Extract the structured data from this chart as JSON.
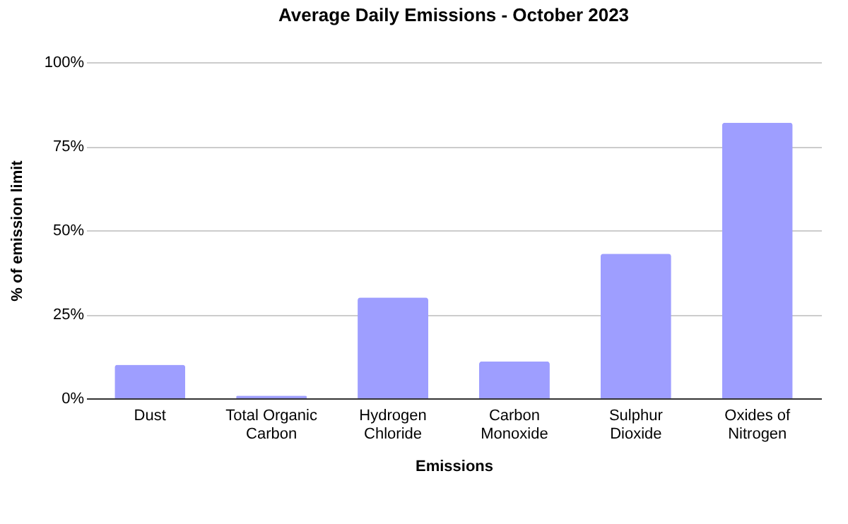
{
  "chart_data": {
    "type": "bar",
    "title": "Average Daily Emissions - October 2023",
    "xlabel": "Emissions",
    "ylabel": "% of emission limit",
    "categories": [
      "Dust",
      "Total Organic Carbon",
      "Hydrogen Chloride",
      "Carbon Monoxide",
      "Sulphur Dioxide",
      "Oxides of Nitrogen"
    ],
    "values": [
      10,
      0.8,
      30,
      11,
      43,
      82
    ],
    "color": "#9e9eff",
    "ylim": [
      0,
      100
    ],
    "yticks": [
      {
        "value": 0,
        "label": "0%"
      },
      {
        "value": 25,
        "label": "25%"
      },
      {
        "value": 50,
        "label": "50%"
      },
      {
        "value": 75,
        "label": "75%"
      },
      {
        "value": 100,
        "label": "100%"
      }
    ],
    "grid": "y"
  }
}
